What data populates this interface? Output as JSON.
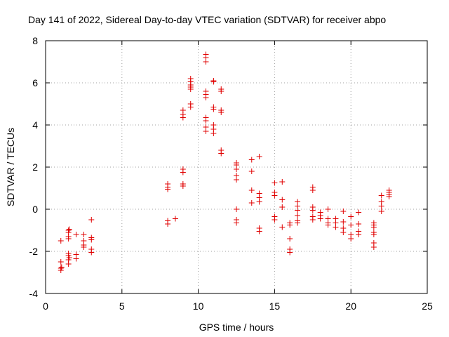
{
  "chart_data": {
    "type": "scatter",
    "title": "Day 141 of 2022, Sidereal Day-to-day VTEC variation (SDTVAR) for receiver abpo",
    "xlabel": "GPS time / hours",
    "ylabel": "SDTVAR / TECUs",
    "xlim": [
      0,
      25
    ],
    "ylim": [
      -4,
      8
    ],
    "xticks": [
      0,
      5,
      10,
      15,
      20,
      25
    ],
    "yticks": [
      -4,
      -2,
      0,
      2,
      4,
      6,
      8
    ],
    "xtick_labels": [
      "0",
      "5",
      "10",
      "15",
      "20",
      "25"
    ],
    "ytick_labels": [
      "-4",
      "-2",
      "0",
      "2",
      "4",
      "6",
      "8"
    ],
    "grid": true,
    "marker": "+",
    "color": "#e00000",
    "series": [
      {
        "name": "SDTVAR",
        "points": [
          [
            1.0,
            -1.5
          ],
          [
            1.0,
            -2.5
          ],
          [
            1.0,
            -2.8
          ],
          [
            1.0,
            -2.9
          ],
          [
            1.05,
            -2.75
          ],
          [
            1.5,
            -1.0
          ],
          [
            1.5,
            -1.1
          ],
          [
            1.5,
            -1.3
          ],
          [
            1.5,
            -1.4
          ],
          [
            1.5,
            -2.1
          ],
          [
            1.5,
            -2.2
          ],
          [
            1.5,
            -2.4
          ],
          [
            1.5,
            -2.6
          ],
          [
            1.55,
            -0.95
          ],
          [
            1.55,
            -2.3
          ],
          [
            2.0,
            -1.2
          ],
          [
            2.0,
            -2.15
          ],
          [
            2.0,
            -2.35
          ],
          [
            2.5,
            -1.2
          ],
          [
            2.5,
            -1.5
          ],
          [
            2.5,
            -1.7
          ],
          [
            2.5,
            -1.8
          ],
          [
            3.0,
            -0.5
          ],
          [
            3.0,
            -1.35
          ],
          [
            3.0,
            -1.45
          ],
          [
            3.0,
            -1.9
          ],
          [
            3.0,
            -2.05
          ],
          [
            8.0,
            1.2
          ],
          [
            8.0,
            1.05
          ],
          [
            8.0,
            0.95
          ],
          [
            8.0,
            -0.55
          ],
          [
            8.0,
            -0.7
          ],
          [
            8.5,
            -0.45
          ],
          [
            9.0,
            1.9
          ],
          [
            9.0,
            1.75
          ],
          [
            9.0,
            1.2
          ],
          [
            9.0,
            1.1
          ],
          [
            9.0,
            4.7
          ],
          [
            9.0,
            4.5
          ],
          [
            9.0,
            4.35
          ],
          [
            9.5,
            5.0
          ],
          [
            9.5,
            4.85
          ],
          [
            9.5,
            5.7
          ],
          [
            9.5,
            5.8
          ],
          [
            9.5,
            5.9
          ],
          [
            9.5,
            6.05
          ],
          [
            9.5,
            6.2
          ],
          [
            10.5,
            7.35
          ],
          [
            10.5,
            7.2
          ],
          [
            10.5,
            7.0
          ],
          [
            10.5,
            5.6
          ],
          [
            10.5,
            5.45
          ],
          [
            10.5,
            5.3
          ],
          [
            10.5,
            4.35
          ],
          [
            10.5,
            4.2
          ],
          [
            10.5,
            3.9
          ],
          [
            10.5,
            3.7
          ],
          [
            11.0,
            6.1
          ],
          [
            11.0,
            6.05
          ],
          [
            11.0,
            4.85
          ],
          [
            11.0,
            4.75
          ],
          [
            11.0,
            4.0
          ],
          [
            11.0,
            3.8
          ],
          [
            11.0,
            3.6
          ],
          [
            11.5,
            5.7
          ],
          [
            11.5,
            5.6
          ],
          [
            11.5,
            4.7
          ],
          [
            11.5,
            4.6
          ],
          [
            11.5,
            2.8
          ],
          [
            11.5,
            2.65
          ],
          [
            12.5,
            2.2
          ],
          [
            12.5,
            2.1
          ],
          [
            12.5,
            1.9
          ],
          [
            12.5,
            1.6
          ],
          [
            12.5,
            1.4
          ],
          [
            12.5,
            0.0
          ],
          [
            12.5,
            -0.5
          ],
          [
            12.5,
            -0.65
          ],
          [
            13.5,
            2.35
          ],
          [
            13.5,
            1.8
          ],
          [
            13.5,
            0.9
          ],
          [
            13.5,
            0.3
          ],
          [
            14.0,
            2.5
          ],
          [
            14.0,
            0.75
          ],
          [
            14.0,
            0.55
          ],
          [
            14.0,
            0.35
          ],
          [
            14.0,
            -0.9
          ],
          [
            14.0,
            -1.05
          ],
          [
            15.0,
            1.25
          ],
          [
            15.0,
            0.8
          ],
          [
            15.0,
            0.65
          ],
          [
            15.0,
            -0.35
          ],
          [
            15.0,
            -0.5
          ],
          [
            15.5,
            1.3
          ],
          [
            15.5,
            0.45
          ],
          [
            15.5,
            0.1
          ],
          [
            15.5,
            -0.85
          ],
          [
            16.0,
            -0.65
          ],
          [
            16.0,
            -0.75
          ],
          [
            16.0,
            -1.4
          ],
          [
            16.0,
            -1.9
          ],
          [
            16.0,
            -2.05
          ],
          [
            16.5,
            0.35
          ],
          [
            16.5,
            0.15
          ],
          [
            16.5,
            -0.05
          ],
          [
            16.5,
            -0.3
          ],
          [
            16.5,
            -0.55
          ],
          [
            16.5,
            -0.65
          ],
          [
            17.5,
            1.05
          ],
          [
            17.5,
            0.9
          ],
          [
            17.5,
            0.1
          ],
          [
            17.5,
            -0.05
          ],
          [
            17.5,
            -0.35
          ],
          [
            17.5,
            -0.5
          ],
          [
            18.0,
            -0.15
          ],
          [
            18.0,
            -0.3
          ],
          [
            18.0,
            -0.45
          ],
          [
            18.5,
            0.0
          ],
          [
            18.5,
            -0.45
          ],
          [
            18.5,
            -0.65
          ],
          [
            18.5,
            -0.75
          ],
          [
            19.0,
            -0.45
          ],
          [
            19.0,
            -0.65
          ],
          [
            19.0,
            -0.85
          ],
          [
            19.5,
            -0.1
          ],
          [
            19.5,
            -0.6
          ],
          [
            19.5,
            -0.9
          ],
          [
            19.5,
            -1.1
          ],
          [
            20.0,
            -0.35
          ],
          [
            20.0,
            -0.75
          ],
          [
            20.0,
            -1.2
          ],
          [
            20.0,
            -1.4
          ],
          [
            20.5,
            -0.15
          ],
          [
            20.5,
            -0.7
          ],
          [
            20.5,
            -1.05
          ],
          [
            20.5,
            -1.2
          ],
          [
            21.5,
            -0.65
          ],
          [
            21.5,
            -0.75
          ],
          [
            21.5,
            -0.85
          ],
          [
            21.5,
            -1.1
          ],
          [
            21.5,
            -1.2
          ],
          [
            21.5,
            -1.6
          ],
          [
            21.5,
            -1.8
          ],
          [
            22.0,
            0.65
          ],
          [
            22.0,
            0.35
          ],
          [
            22.0,
            0.15
          ],
          [
            22.0,
            -0.1
          ],
          [
            22.5,
            0.9
          ],
          [
            22.5,
            0.8
          ],
          [
            22.5,
            0.7
          ],
          [
            22.5,
            0.6
          ]
        ]
      }
    ]
  }
}
